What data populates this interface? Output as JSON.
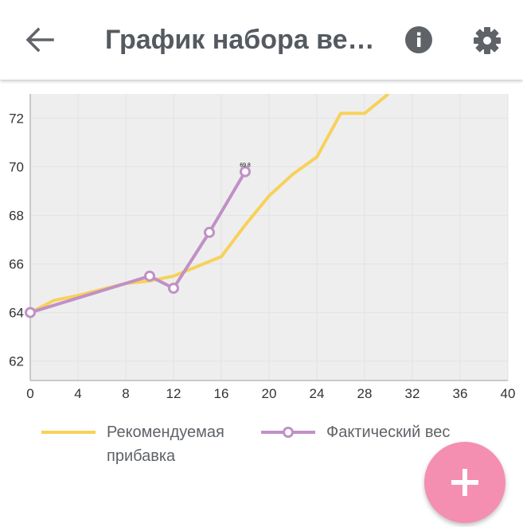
{
  "header": {
    "title": "График набора ве…",
    "back_icon": "arrow-left-icon",
    "info_icon": "info-icon",
    "settings_icon": "gear-icon"
  },
  "chart_data": {
    "type": "line",
    "xlim": [
      0,
      40
    ],
    "ylim": [
      61.2,
      73.0
    ],
    "x_ticks": [
      0,
      4,
      8,
      12,
      16,
      20,
      24,
      28,
      32,
      36,
      40
    ],
    "y_ticks": [
      62,
      64,
      66,
      68,
      70,
      72
    ],
    "grid": true,
    "series": [
      {
        "name": "Рекомендуемая прибавка",
        "color": "#f7d15a",
        "points": [
          [
            0,
            64.0
          ],
          [
            2,
            64.5
          ],
          [
            4,
            64.7
          ],
          [
            6,
            64.95
          ],
          [
            8,
            65.2
          ],
          [
            10,
            65.3
          ],
          [
            12,
            65.5
          ],
          [
            14,
            65.9
          ],
          [
            16,
            66.3
          ],
          [
            18,
            67.6
          ],
          [
            20,
            68.8
          ],
          [
            22,
            69.7
          ],
          [
            24,
            70.4
          ],
          [
            26,
            72.2
          ],
          [
            28,
            72.2
          ],
          [
            30,
            73.0
          ]
        ]
      },
      {
        "name": "Фактический вес",
        "color": "#c090c6",
        "markers": true,
        "points": [
          [
            0,
            64.0
          ],
          [
            10,
            65.5
          ],
          [
            12,
            65.0
          ],
          [
            15,
            67.3
          ],
          [
            18,
            69.8
          ]
        ],
        "last_point_label": "69.8"
      }
    ]
  },
  "legend": {
    "items": [
      {
        "label": "Рекомендуемая\nприбавка",
        "color": "#f7d15a",
        "marker": false
      },
      {
        "label": "Фактический вес",
        "color": "#c090c6",
        "marker": true
      }
    ]
  },
  "fab": {
    "color": "#f48fb1",
    "icon": "add-icon"
  }
}
